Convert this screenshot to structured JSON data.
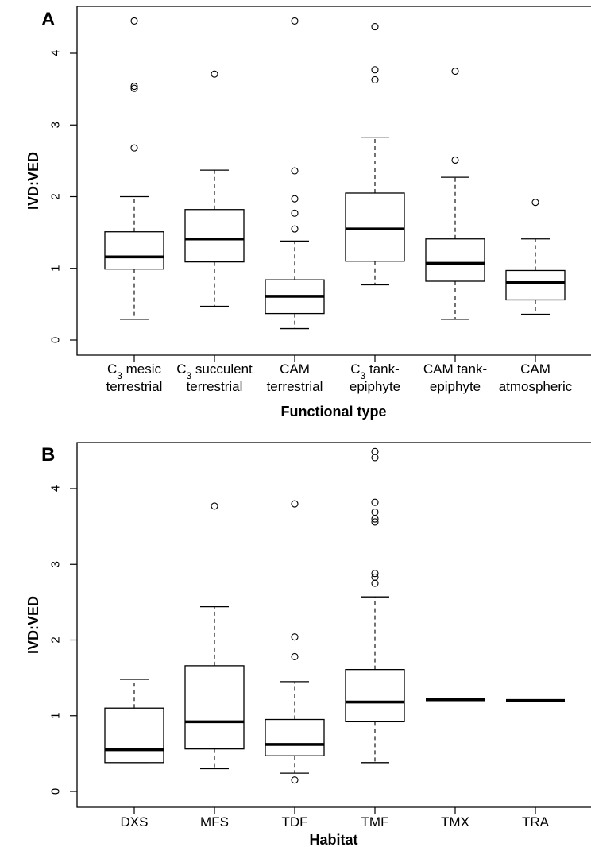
{
  "chart_data": [
    {
      "panel_label": "A",
      "type": "boxplot",
      "xlabel": "Functional type",
      "ylabel": "IVD:VED",
      "ylim": [
        0,
        4.5
      ],
      "yticks": [
        "0",
        "1",
        "2",
        "3",
        "4"
      ],
      "categories": [
        {
          "line1_prefix": "C",
          "line1_sub": "3",
          "line1_rest": " mesic",
          "line2": "terrestrial",
          "whisker_low": 0.29,
          "q1": 0.99,
          "median": 1.16,
          "q3": 1.51,
          "whisker_high": 2.0,
          "outliers": [
            2.68,
            3.51,
            3.54,
            4.45
          ]
        },
        {
          "line1_prefix": "C",
          "line1_sub": "3",
          "line1_rest": " succulent",
          "line2": "terrestrial",
          "whisker_low": 0.47,
          "q1": 1.09,
          "median": 1.41,
          "q3": 1.82,
          "whisker_high": 2.37,
          "outliers": [
            3.71
          ]
        },
        {
          "line1_prefix": "",
          "line1_sub": "",
          "line1_rest": "CAM",
          "line2": "terrestrial",
          "whisker_low": 0.16,
          "q1": 0.37,
          "median": 0.61,
          "q3": 0.84,
          "whisker_high": 1.38,
          "outliers": [
            1.55,
            1.77,
            1.97,
            2.36,
            4.45
          ]
        },
        {
          "line1_prefix": "C",
          "line1_sub": "3",
          "line1_rest": " tank-",
          "line2": "epiphyte",
          "whisker_low": 0.77,
          "q1": 1.1,
          "median": 1.55,
          "q3": 2.05,
          "whisker_high": 2.83,
          "outliers": [
            3.63,
            3.77,
            4.37
          ]
        },
        {
          "line1_prefix": "",
          "line1_sub": "",
          "line1_rest": "CAM tank-",
          "line2": "epiphyte",
          "whisker_low": 0.29,
          "q1": 0.82,
          "median": 1.07,
          "q3": 1.41,
          "whisker_high": 2.27,
          "outliers": [
            2.51,
            3.75
          ]
        },
        {
          "line1_prefix": "",
          "line1_sub": "",
          "line1_rest": "CAM",
          "line2": "atmospheric",
          "whisker_low": 0.36,
          "q1": 0.56,
          "median": 0.8,
          "q3": 0.97,
          "whisker_high": 1.41,
          "outliers": [
            1.92
          ]
        }
      ]
    },
    {
      "panel_label": "B",
      "type": "boxplot",
      "xlabel": "Habitat",
      "ylabel": "IVD:VED",
      "ylim": [
        0,
        4.5
      ],
      "yticks": [
        "0",
        "1",
        "2",
        "3",
        "4"
      ],
      "categories": [
        {
          "label": "DXS",
          "whisker_low": 0.38,
          "q1": 0.38,
          "median": 0.55,
          "q3": 1.1,
          "whisker_high": 1.48,
          "outliers": []
        },
        {
          "label": "MFS",
          "whisker_low": 0.3,
          "q1": 0.56,
          "median": 0.92,
          "q3": 1.66,
          "whisker_high": 2.44,
          "outliers": [
            3.77
          ]
        },
        {
          "label": "TDF",
          "whisker_low": 0.24,
          "q1": 0.47,
          "median": 0.62,
          "q3": 0.95,
          "whisker_high": 1.45,
          "outliers": [
            0.15,
            1.78,
            2.04,
            3.8
          ]
        },
        {
          "label": "TMF",
          "whisker_low": 0.38,
          "q1": 0.92,
          "median": 1.18,
          "q3": 1.61,
          "whisker_high": 2.57,
          "outliers": [
            2.75,
            2.83,
            2.88,
            3.56,
            3.6,
            3.69,
            3.82,
            4.41,
            4.49
          ]
        },
        {
          "label": "TMX",
          "whisker_low": 1.21,
          "q1": 1.21,
          "median": 1.21,
          "q3": 1.21,
          "whisker_high": 1.21,
          "outliers": []
        },
        {
          "label": "TRA",
          "whisker_low": 1.2,
          "q1": 1.2,
          "median": 1.2,
          "q3": 1.2,
          "whisker_high": 1.2,
          "outliers": []
        }
      ]
    }
  ]
}
